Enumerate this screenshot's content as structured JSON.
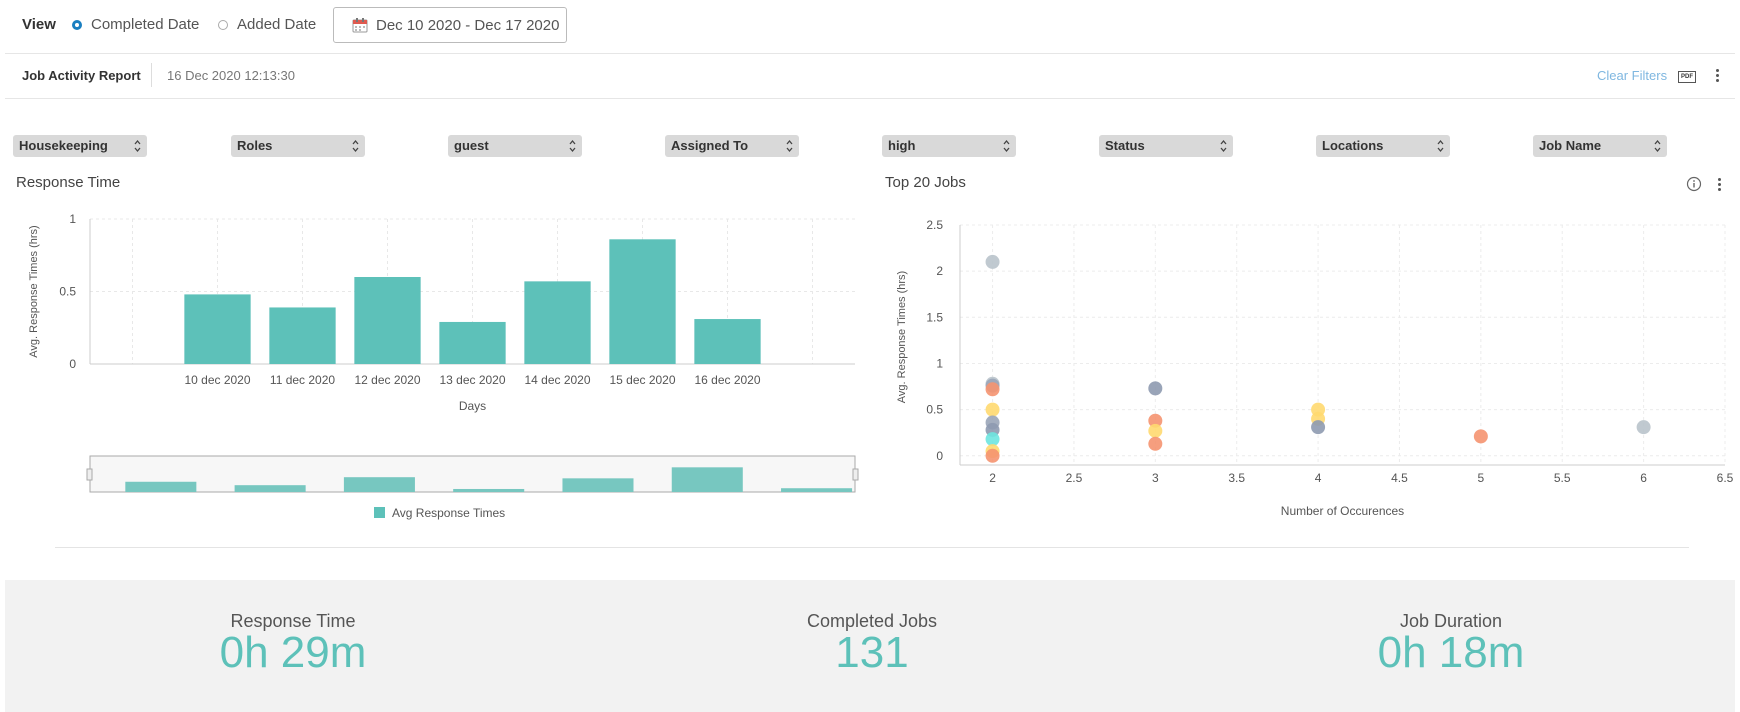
{
  "view": {
    "label": "View",
    "options": [
      {
        "label": "Completed Date",
        "selected": true
      },
      {
        "label": "Added Date",
        "selected": false
      }
    ],
    "date_range": "Dec 10 2020 - Dec 17 2020"
  },
  "report": {
    "title": "Job Activity Report",
    "timestamp": "16 Dec 2020 12:13:30",
    "clear_filters": "Clear Filters",
    "pdf_label": "PDF"
  },
  "filters": [
    "Housekeeping",
    "Roles",
    "guest",
    "Assigned To",
    "high",
    "Status",
    "Locations",
    "Job Name"
  ],
  "colors": {
    "accent": "#5dc1b9",
    "link": "#7fb7e0",
    "radio": "#1a7fc1"
  },
  "response_chart": {
    "title": "Response Time",
    "legend": "Avg Response Times"
  },
  "top_jobs": {
    "title": "Top 20 Jobs"
  },
  "chart_data": [
    {
      "type": "bar",
      "title": "Response Time",
      "xlabel": "Days",
      "ylabel": "Avg. Response Times (hrs)",
      "categories": [
        "10 dec 2020",
        "11 dec 2020",
        "12 dec 2020",
        "13 dec 2020",
        "14 dec 2020",
        "15 dec 2020",
        "16 dec 2020"
      ],
      "series": [
        {
          "name": "Avg Response Times",
          "values": [
            0.48,
            0.39,
            0.6,
            0.29,
            0.57,
            0.86,
            0.31
          ]
        }
      ],
      "ylim": [
        0,
        1
      ],
      "yticks": [
        "0",
        "0.5",
        "1"
      ],
      "grid": true,
      "legend": "bottom",
      "has_range_slider": true
    },
    {
      "type": "scatter",
      "title": "Top 20 Jobs",
      "xlabel": "Number of Occurences",
      "ylabel": "Avg. Response Times (hrs)",
      "xlim": [
        1.8,
        6.5
      ],
      "ylim": [
        -0.1,
        2.5
      ],
      "xticks": [
        "2",
        "2.5",
        "3",
        "3.5",
        "4",
        "4.5",
        "5",
        "5.5",
        "6",
        "6.5"
      ],
      "yticks": [
        "0",
        "0.5",
        "1",
        "1.5",
        "2",
        "2.5"
      ],
      "grid": true,
      "points": [
        {
          "x": 2,
          "y": 2.1,
          "color": "#b9c3cb"
        },
        {
          "x": 2,
          "y": 0.78,
          "color": "#b9c3cb"
        },
        {
          "x": 2,
          "y": 0.76,
          "color": "#9aa5b8"
        },
        {
          "x": 2,
          "y": 0.72,
          "color": "#f59370"
        },
        {
          "x": 2,
          "y": 0.5,
          "color": "#ffd970"
        },
        {
          "x": 2,
          "y": 0.36,
          "color": "#9aa5b8"
        },
        {
          "x": 2,
          "y": 0.28,
          "color": "#8e9ab0"
        },
        {
          "x": 2,
          "y": 0.18,
          "color": "#6ee6e0"
        },
        {
          "x": 2,
          "y": 0.05,
          "color": "#ffd970"
        },
        {
          "x": 2,
          "y": 0.0,
          "color": "#f59370"
        },
        {
          "x": 3,
          "y": 0.73,
          "color": "#8e9ab0"
        },
        {
          "x": 3,
          "y": 0.38,
          "color": "#f59370"
        },
        {
          "x": 3,
          "y": 0.27,
          "color": "#ffd970"
        },
        {
          "x": 3,
          "y": 0.13,
          "color": "#f59370"
        },
        {
          "x": 4,
          "y": 0.5,
          "color": "#ffd970"
        },
        {
          "x": 4,
          "y": 0.4,
          "color": "#ffd970"
        },
        {
          "x": 4,
          "y": 0.31,
          "color": "#8e9ab0"
        },
        {
          "x": 5,
          "y": 0.21,
          "color": "#f59370"
        },
        {
          "x": 6,
          "y": 0.31,
          "color": "#b9c3cb"
        }
      ]
    }
  ],
  "kpis": [
    {
      "label": "Response Time",
      "value": "0h 29m"
    },
    {
      "label": "Completed Jobs",
      "value": "131"
    },
    {
      "label": "Job Duration",
      "value": "0h 18m"
    }
  ]
}
